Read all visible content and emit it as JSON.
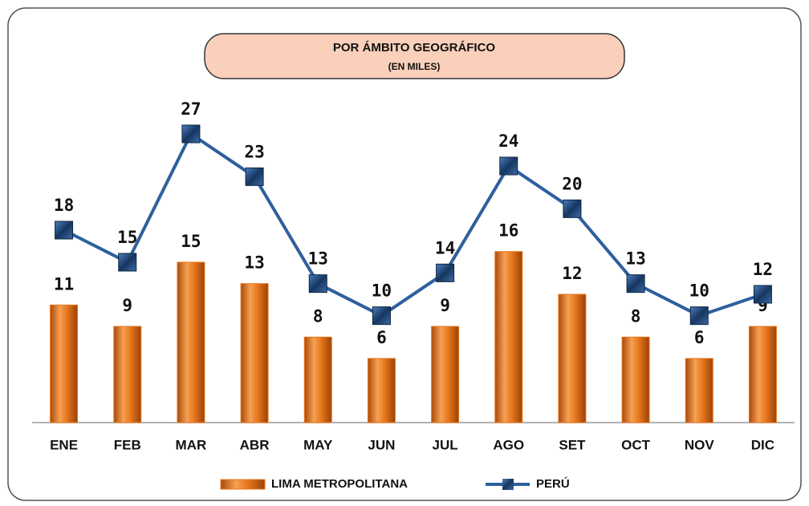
{
  "chart_data": {
    "type": "bar_line",
    "title": "POR ÁMBITO GEOGRÁFICO",
    "subtitle": "(EN MILES)",
    "categories": [
      "ENE",
      "FEB",
      "MAR",
      "ABR",
      "MAY",
      "JUN",
      "JUL",
      "AGO",
      "SET",
      "OCT",
      "NOV",
      "DIC"
    ],
    "series": [
      {
        "name": "LIMA METROPOLITANA",
        "type": "bar",
        "color": "#e8791e",
        "values": [
          11,
          9,
          15,
          13,
          8,
          6,
          9,
          16,
          12,
          8,
          6,
          9
        ]
      },
      {
        "name": "PERÚ",
        "type": "line",
        "color": "#2e5f9e",
        "values": [
          18,
          15,
          27,
          23,
          13,
          10,
          14,
          24,
          20,
          13,
          10,
          12
        ]
      }
    ]
  }
}
